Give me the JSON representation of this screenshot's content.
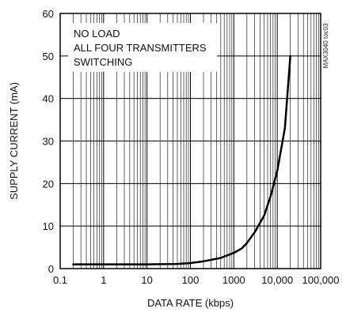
{
  "chart_data": {
    "type": "line",
    "xlabel": "DATA RATE (kbps)",
    "ylabel": "SUPPLY CURRENT (mA)",
    "xscale": "log",
    "xlim": [
      0.1,
      100000
    ],
    "ylim": [
      0,
      60
    ],
    "x_tick_labels": [
      "0.1",
      "1",
      "10",
      "100",
      "1000",
      "10,000",
      "100,000"
    ],
    "y_tick_labels": [
      "0",
      "10",
      "20",
      "30",
      "40",
      "50",
      "60"
    ],
    "grid": true,
    "annotations": [
      "NO LOAD",
      "ALL FOUR TRANSMITTERS",
      "SWITCHING"
    ],
    "watermark": "MAX3040 toc03",
    "series": [
      {
        "x": [
          0.2,
          1,
          10,
          50,
          100,
          200,
          500,
          1000,
          1500,
          2000,
          3000,
          5000,
          7000,
          10000,
          15000,
          20000
        ],
        "y": [
          1,
          1,
          1,
          1.1,
          1.3,
          1.7,
          2.5,
          3.7,
          4.7,
          6,
          8.5,
          12.5,
          17,
          23,
          33,
          50
        ]
      }
    ]
  }
}
